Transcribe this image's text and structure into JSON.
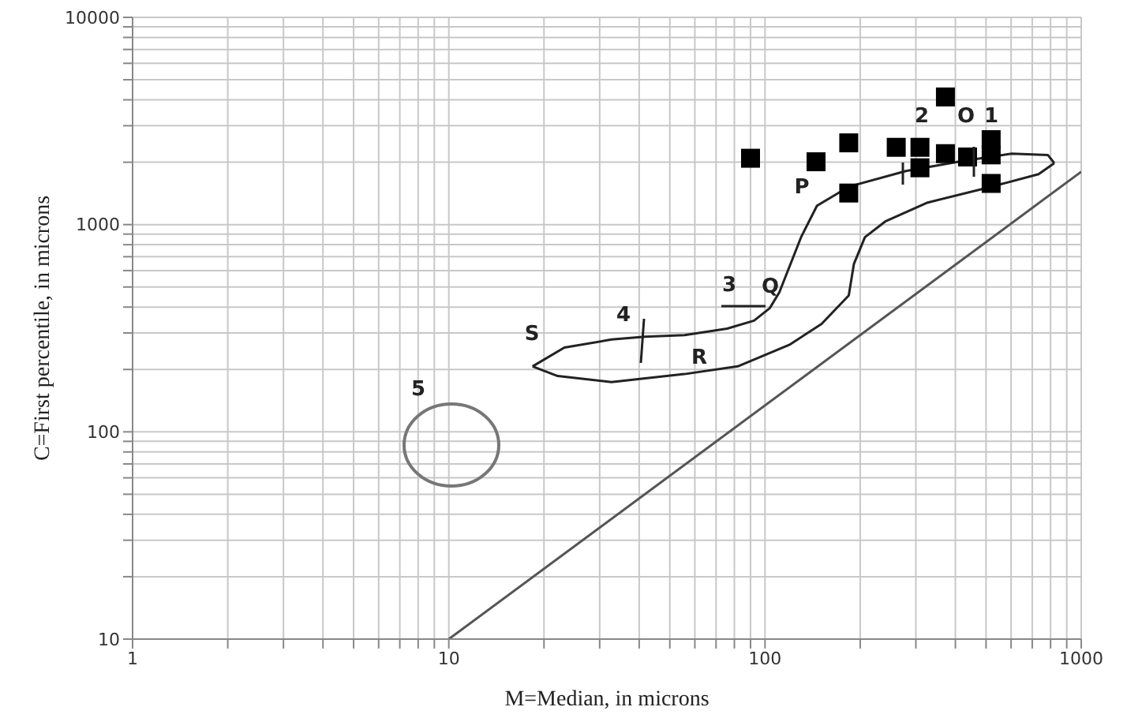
{
  "chart_data": {
    "type": "scatter",
    "xlabel": "M=Median, in microns",
    "ylabel": "C=First percentile, in microns",
    "log": "xy",
    "grid": true,
    "xlim": [
      1,
      1000
    ],
    "xticks": [
      1,
      {
        "value": 2,
        "label": null
      },
      {
        "value": 3,
        "label": null
      },
      {
        "value": 4,
        "label": null
      },
      {
        "value": 5,
        "label": null
      },
      {
        "value": 6,
        "label": null
      },
      {
        "value": 7,
        "label": null
      },
      {
        "value": 8,
        "label": null
      },
      {
        "value": 9,
        "label": null
      },
      10,
      {
        "value": 20,
        "label": null
      },
      {
        "value": 30,
        "label": null
      },
      {
        "value": 40,
        "label": null
      },
      {
        "value": 50,
        "label": null
      },
      {
        "value": 60,
        "label": null
      },
      {
        "value": 70,
        "label": null
      },
      {
        "value": 80,
        "label": null
      },
      {
        "value": 90,
        "label": null
      },
      100,
      {
        "value": 200,
        "label": null
      },
      {
        "value": 300,
        "label": null
      },
      {
        "value": 400,
        "label": null
      },
      {
        "value": 500,
        "label": null
      },
      {
        "value": 600,
        "label": null
      },
      {
        "value": 700,
        "label": null
      },
      {
        "value": 800,
        "label": null
      },
      {
        "value": 900,
        "label": null
      },
      1000
    ],
    "ylim": [
      10,
      10000
    ],
    "yticks": [
      10,
      {
        "value": 20,
        "label": null
      },
      {
        "value": 30,
        "label": null
      },
      {
        "value": 40,
        "label": null
      },
      {
        "value": 50,
        "label": null
      },
      {
        "value": 60,
        "label": null
      },
      {
        "value": 70,
        "label": null
      },
      {
        "value": 80,
        "label": null
      },
      {
        "value": 90,
        "label": null
      },
      100,
      {
        "value": 200,
        "label": null
      },
      {
        "value": 300,
        "label": null
      },
      {
        "value": 400,
        "label": null
      },
      {
        "value": 500,
        "label": null
      },
      {
        "value": 600,
        "label": null
      },
      {
        "value": 700,
        "label": null
      },
      {
        "value": 800,
        "label": null
      },
      {
        "value": 900,
        "label": null
      },
      1000,
      {
        "value": 2000,
        "label": null
      },
      {
        "value": 3000,
        "label": null
      },
      {
        "value": 4000,
        "label": null
      },
      {
        "value": 5000,
        "label": null
      },
      {
        "value": 6000,
        "label": null
      },
      {
        "value": 7000,
        "label": null
      },
      {
        "value": 8000,
        "label": null
      },
      {
        "value": 9000,
        "label": null
      },
      10000
    ],
    "series": [
      {
        "type": "line",
        "color": "#222222",
        "marker": "none",
        "x": [
          18.4,
          23.2,
          32.7,
          41.7,
          55.6,
          75.9,
          92.3,
          103.5,
          111,
          130,
          146,
          184,
          279,
          412,
          603,
          785,
          822
        ],
        "values": [
          207,
          255,
          279,
          288,
          293,
          315,
          344,
          395,
          471,
          869,
          1233,
          1523,
          1814,
          2015,
          2199,
          2164,
          1980
        ]
      },
      {
        "type": "line",
        "color": "#222222",
        "marker": "none",
        "x": [
          18.4,
          22.1,
          32.7,
          55.6,
          82,
          120,
          151,
          184,
          191,
          207,
          240,
          327,
          519,
          733,
          822
        ],
        "values": [
          207,
          186,
          174,
          190,
          207,
          264,
          332,
          455,
          645,
          869,
          1035,
          1278,
          1523,
          1751,
          1980
        ]
      },
      {
        "type": "line",
        "color": "#555555",
        "marker": "none",
        "x": [
          10,
          1000
        ],
        "values": [
          10,
          1800
        ]
      },
      {
        "type": "scatter",
        "color": "#000000",
        "marker": "square",
        "x": [
          90,
          145,
          184,
          184,
          260,
          309,
          309,
          372,
          372,
          437,
          519,
          519,
          519
        ],
        "values": [
          2090,
          2010,
          2480,
          1420,
          2360,
          2360,
          1880,
          4130,
          2200,
          2120,
          2570,
          2170,
          1580
        ]
      }
    ],
    "annotations": [
      "S",
      "4",
      "R",
      "3",
      "Q",
      "P",
      "5",
      "2",
      "O",
      "1"
    ]
  }
}
